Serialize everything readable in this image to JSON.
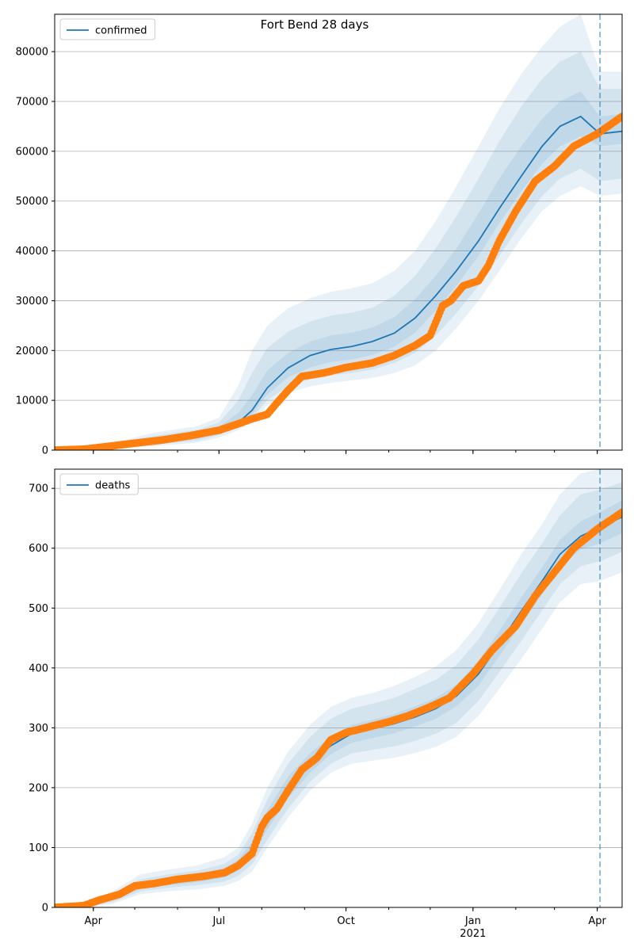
{
  "figure": {
    "title": "Fort Bend 28 days"
  },
  "chart_data": [
    {
      "type": "line",
      "legend_placement": "top-left",
      "grid": "horizontal",
      "x_axis": {
        "type": "date",
        "range": [
          "2020-03-04",
          "2021-04-19"
        ],
        "ticks": [
          {
            "date": "2020-04-01",
            "label": "Apr"
          },
          {
            "date": "2020-07-01",
            "label": "Jul"
          },
          {
            "date": "2020-10-01",
            "label": "Oct"
          },
          {
            "date": "2021-01-01",
            "label": "Jan",
            "sublabel": "2021"
          },
          {
            "date": "2021-04-01",
            "label": "Apr"
          }
        ],
        "show_labels": false
      },
      "y_axis": {
        "range": [
          0,
          87500
        ],
        "ticks": [
          0,
          10000,
          20000,
          30000,
          40000,
          50000,
          60000,
          70000,
          80000
        ]
      },
      "forecast_start": "2021-04-03",
      "series": [
        {
          "name": "confirmed",
          "color": "#1f77b4",
          "kind": "model",
          "dates": [
            "2020-03-04",
            "2020-03-25",
            "2020-04-15",
            "2020-05-15",
            "2020-06-15",
            "2020-07-01",
            "2020-07-15",
            "2020-07-25",
            "2020-08-05",
            "2020-08-20",
            "2020-09-05",
            "2020-09-20",
            "2020-10-05",
            "2020-10-20",
            "2020-11-05",
            "2020-11-20",
            "2020-12-05",
            "2020-12-20",
            "2021-01-05",
            "2021-01-20",
            "2021-02-05",
            "2021-02-20",
            "2021-03-05",
            "2021-03-20",
            "2021-04-03",
            "2021-04-19"
          ],
          "values": [
            0,
            50,
            800,
            1800,
            2800,
            4000,
            5500,
            8000,
            12500,
            16500,
            19000,
            20200,
            20800,
            21800,
            23500,
            26500,
            31000,
            36000,
            42000,
            48500,
            55000,
            61000,
            65000,
            67000,
            63500,
            64000
          ],
          "bands": [
            {
              "lower": [
                0,
                0,
                300,
                800,
                1500,
                2500,
                4000,
                5800,
                9000,
                11500,
                12800,
                13500,
                14000,
                14500,
                15500,
                17000,
                20000,
                24500,
                30000,
                36000,
                42500,
                48000,
                51000,
                53000,
                51000,
                51500
              ],
              "upper": [
                0,
                150,
                1500,
                3500,
                4800,
                6500,
                13000,
                20000,
                25000,
                28500,
                30500,
                31800,
                32500,
                33500,
                36000,
                40000,
                46000,
                53000,
                61000,
                68500,
                75500,
                81000,
                85000,
                87500,
                76000,
                76000
              ]
            },
            {
              "lower": [
                0,
                0,
                450,
                1100,
                1900,
                3000,
                4500,
                6500,
                10000,
                12800,
                14200,
                15000,
                15500,
                16200,
                17500,
                19500,
                23000,
                27500,
                33000,
                39000,
                45500,
                51000,
                54500,
                56500,
                54000,
                54500
              ],
              "upper": [
                0,
                110,
                1250,
                2900,
                4100,
                5500,
                10000,
                15500,
                20500,
                23800,
                25800,
                27000,
                27600,
                28600,
                31000,
                35000,
                40500,
                47000,
                54500,
                62000,
                69000,
                74500,
                78000,
                80000,
                72500,
                72500
              ]
            },
            {
              "lower": [
                0,
                10,
                600,
                1400,
                2300,
                3400,
                5000,
                7200,
                11200,
                14600,
                16600,
                17700,
                18200,
                19100,
                20800,
                23600,
                28000,
                33000,
                39000,
                45500,
                52000,
                57500,
                61000,
                63000,
                61000,
                61500
              ],
              "upper": [
                0,
                80,
                1000,
                2300,
                3400,
                4700,
                7500,
                11000,
                16000,
                19500,
                21800,
                23000,
                23600,
                24600,
                26700,
                30300,
                35000,
                40500,
                47500,
                54500,
                61000,
                66500,
                70000,
                72000,
                67000,
                67500
              ]
            }
          ]
        },
        {
          "name": "",
          "color": "#ff7f0e",
          "kind": "observed",
          "dates": [
            "2020-03-04",
            "2020-03-25",
            "2020-04-10",
            "2020-05-01",
            "2020-05-20",
            "2020-06-10",
            "2020-07-01",
            "2020-07-15",
            "2020-07-25",
            "2020-08-05",
            "2020-08-12",
            "2020-08-20",
            "2020-08-30",
            "2020-09-15",
            "2020-10-01",
            "2020-10-20",
            "2020-11-05",
            "2020-11-20",
            "2020-12-01",
            "2020-12-10",
            "2020-12-16",
            "2020-12-25",
            "2021-01-05",
            "2021-01-12",
            "2021-01-20",
            "2021-02-01",
            "2021-02-15",
            "2021-03-01",
            "2021-03-15",
            "2021-04-01",
            "2021-04-19"
          ],
          "values": [
            0,
            200,
            700,
            1400,
            2000,
            2900,
            4000,
            5300,
            6300,
            7200,
            9500,
            12000,
            14800,
            15500,
            16600,
            17500,
            19000,
            21000,
            23000,
            29000,
            30000,
            33000,
            34000,
            37000,
            42000,
            48000,
            54000,
            57000,
            61000,
            63500,
            67000
          ]
        }
      ]
    },
    {
      "type": "line",
      "legend_placement": "top-left",
      "grid": "horizontal",
      "x_axis": {
        "type": "date",
        "range": [
          "2020-03-04",
          "2021-04-19"
        ],
        "ticks": [
          {
            "date": "2020-04-01",
            "label": "Apr"
          },
          {
            "date": "2020-07-01",
            "label": "Jul"
          },
          {
            "date": "2020-10-01",
            "label": "Oct"
          },
          {
            "date": "2021-01-01",
            "label": "Jan",
            "sublabel": "2021"
          },
          {
            "date": "2021-04-01",
            "label": "Apr"
          }
        ],
        "show_labels": true
      },
      "y_axis": {
        "range": [
          0,
          732
        ],
        "ticks": [
          0,
          100,
          200,
          300,
          400,
          500,
          600,
          700
        ]
      },
      "forecast_start": "2021-04-03",
      "series": [
        {
          "name": "deaths",
          "color": "#1f77b4",
          "kind": "model",
          "dates": [
            "2020-03-04",
            "2020-03-25",
            "2020-04-15",
            "2020-05-05",
            "2020-05-25",
            "2020-06-15",
            "2020-07-05",
            "2020-07-15",
            "2020-07-25",
            "2020-08-05",
            "2020-08-20",
            "2020-09-05",
            "2020-09-20",
            "2020-10-05",
            "2020-10-20",
            "2020-11-05",
            "2020-11-20",
            "2020-12-05",
            "2020-12-20",
            "2021-01-05",
            "2021-01-20",
            "2021-02-05",
            "2021-02-20",
            "2021-03-05",
            "2021-03-20",
            "2021-04-03",
            "2021-04-19"
          ],
          "values": [
            0,
            0,
            15,
            35,
            42,
            48,
            58,
            70,
            95,
            145,
            200,
            240,
            270,
            290,
            298,
            307,
            318,
            332,
            353,
            390,
            440,
            495,
            545,
            590,
            620,
            635,
            652
          ],
          "bands": [
            {
              "lower": [
                0,
                0,
                6,
                22,
                27,
                30,
                36,
                44,
                60,
                100,
                150,
                195,
                225,
                240,
                245,
                250,
                258,
                268,
                285,
                320,
                365,
                415,
                465,
                510,
                540,
                545,
                560
              ],
              "upper": [
                0,
                4,
                27,
                55,
                63,
                70,
                84,
                100,
                140,
                200,
                260,
                305,
                335,
                350,
                358,
                370,
                385,
                402,
                430,
                475,
                530,
                590,
                640,
                690,
                725,
                732,
                740
              ]
            },
            {
              "lower": [
                0,
                0,
                9,
                27,
                33,
                37,
                43,
                53,
                72,
                113,
                165,
                210,
                240,
                257,
                263,
                269,
                278,
                290,
                308,
                345,
                393,
                445,
                496,
                540,
                570,
                578,
                594
              ],
              "upper": [
                0,
                3,
                23,
                47,
                55,
                61,
                73,
                88,
                124,
                180,
                240,
                285,
                315,
                332,
                340,
                350,
                365,
                380,
                405,
                448,
                500,
                558,
                608,
                655,
                690,
                698,
                710
              ]
            },
            {
              "lower": [
                0,
                0,
                12,
                31,
                37,
                42,
                50,
                61,
                84,
                130,
                183,
                225,
                256,
                275,
                283,
                291,
                302,
                315,
                336,
                370,
                420,
                473,
                523,
                568,
                598,
                608,
                625
              ],
              "upper": [
                0,
                1,
                19,
                41,
                48,
                54,
                66,
                80,
                110,
                162,
                218,
                258,
                285,
                305,
                313,
                323,
                336,
                350,
                372,
                412,
                462,
                518,
                568,
                614,
                645,
                660,
                680
              ]
            }
          ]
        },
        {
          "name": "",
          "color": "#ff7f0e",
          "kind": "observed",
          "dates": [
            "2020-03-04",
            "2020-03-25",
            "2020-04-05",
            "2020-04-20",
            "2020-05-01",
            "2020-05-15",
            "2020-06-01",
            "2020-06-20",
            "2020-07-05",
            "2020-07-15",
            "2020-07-25",
            "2020-08-01",
            "2020-08-05",
            "2020-08-12",
            "2020-08-20",
            "2020-08-30",
            "2020-09-10",
            "2020-09-20",
            "2020-10-01",
            "2020-10-15",
            "2020-11-01",
            "2020-11-15",
            "2020-12-01",
            "2020-12-15",
            "2021-01-01",
            "2021-01-15",
            "2021-02-01",
            "2021-02-15",
            "2021-03-01",
            "2021-03-15",
            "2021-04-01",
            "2021-04-19"
          ],
          "values": [
            0,
            3,
            12,
            22,
            36,
            40,
            47,
            52,
            58,
            70,
            90,
            135,
            150,
            165,
            195,
            230,
            250,
            280,
            292,
            300,
            310,
            320,
            335,
            350,
            390,
            430,
            470,
            520,
            560,
            600,
            632,
            660
          ]
        }
      ]
    }
  ]
}
